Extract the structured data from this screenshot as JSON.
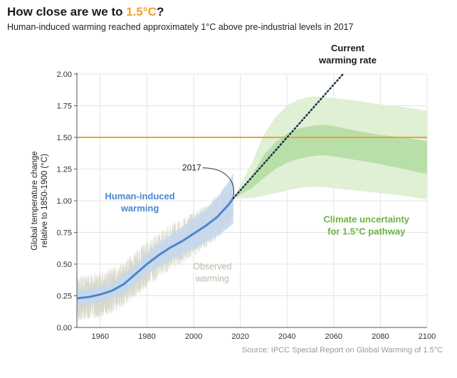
{
  "header": {
    "title_prefix": "How close are we to ",
    "title_highlight": "1.5°C",
    "title_suffix": "?",
    "subtitle": "Human-induced warming reached approximately 1°C above pre-industrial levels in 2017"
  },
  "source": "Source: IPCC Special Report on Global Warming of 1.5°C",
  "colors": {
    "human_line": "#4a86cf",
    "human_band": "#c6d8ef",
    "observed": "#d5d6c8",
    "threshold": "#f0a12a",
    "uncertainty_outer": "#dff0d5",
    "uncertainty_inner": "#b9dfa8",
    "annotation_green": "#6ab344",
    "current_rate": "#1c3050"
  },
  "chart_data": {
    "type": "line",
    "ylabel_lines": [
      "Global temperature change",
      "relative to 1850-1900 (°C)"
    ],
    "xlim": [
      1950,
      2100
    ],
    "ylim": [
      0,
      2
    ],
    "x_ticks": [
      1960,
      1980,
      2000,
      2020,
      2040,
      2060,
      2080,
      2100
    ],
    "y_ticks": [
      "0.00",
      "0.25",
      "0.50",
      "0.75",
      "1.00",
      "1.25",
      "1.50",
      "1.75",
      "2.00"
    ],
    "grid": true,
    "threshold": {
      "value": 1.5
    },
    "series": [
      {
        "name": "Human-induced warming",
        "x": [
          1950,
          1955,
          1960,
          1965,
          1970,
          1975,
          1980,
          1985,
          1990,
          1995,
          2000,
          2005,
          2010,
          2015,
          2017
        ],
        "y": [
          0.23,
          0.24,
          0.26,
          0.29,
          0.34,
          0.42,
          0.5,
          0.57,
          0.63,
          0.68,
          0.74,
          0.8,
          0.87,
          0.97,
          1.02
        ],
        "band_half_width": [
          0.06,
          0.06,
          0.06,
          0.06,
          0.07,
          0.07,
          0.08,
          0.09,
          0.1,
          0.11,
          0.12,
          0.13,
          0.15,
          0.18,
          0.2
        ]
      },
      {
        "name": "Observed warming",
        "x_range": [
          1950,
          2017
        ]
      },
      {
        "name": "Current warming rate",
        "x": [
          2017,
          2064
        ],
        "y": [
          1.02,
          2.0
        ],
        "style": "dotted"
      },
      {
        "name": "Climate uncertainty for 1.5°C pathway",
        "x": [
          2017,
          2025,
          2030,
          2035,
          2040,
          2045,
          2050,
          2055,
          2060,
          2070,
          2080,
          2090,
          2100
        ],
        "outer_upper": [
          1.02,
          1.3,
          1.52,
          1.66,
          1.75,
          1.8,
          1.82,
          1.82,
          1.81,
          1.79,
          1.76,
          1.74,
          1.71
        ],
        "outer_lower": [
          1.02,
          1.02,
          1.04,
          1.06,
          1.08,
          1.1,
          1.11,
          1.11,
          1.1,
          1.08,
          1.06,
          1.04,
          1.01
        ],
        "inner_upper": [
          1.02,
          1.2,
          1.36,
          1.46,
          1.53,
          1.57,
          1.59,
          1.6,
          1.59,
          1.55,
          1.52,
          1.5,
          1.47
        ],
        "inner_lower": [
          1.02,
          1.1,
          1.18,
          1.25,
          1.3,
          1.33,
          1.35,
          1.36,
          1.35,
          1.32,
          1.29,
          1.25,
          1.21
        ]
      }
    ],
    "annotations": {
      "year_label": "2017",
      "human_label_lines": [
        "Human-induced",
        "warming"
      ],
      "observed_label_lines": [
        "Observed",
        "warming"
      ],
      "current_rate_lines": [
        "Current",
        "warming rate"
      ],
      "uncertainty_lines": [
        "Climate uncertainty",
        "for 1.5°C pathway"
      ]
    }
  }
}
